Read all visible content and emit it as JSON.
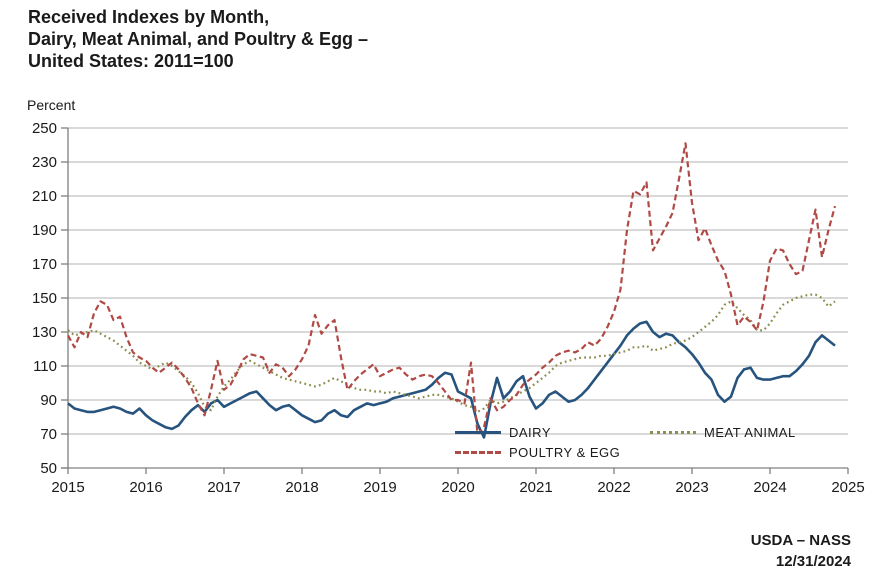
{
  "title": {
    "line1": "Received Indexes by Month,",
    "line2": "Dairy, Meat Animal, and Poultry & Egg –",
    "line3": "United States: 2011=100"
  },
  "y_axis_label": "Percent",
  "footer": {
    "line1": "USDA – NASS",
    "line2": "12/31/2024"
  },
  "chart_data": {
    "type": "line",
    "title": "Received Indexes by Month, Dairy, Meat Animal, and Poultry & Egg – United States: 2011=100",
    "ylabel": "Percent",
    "ylim": [
      50,
      250
    ],
    "y_ticks": [
      50,
      70,
      90,
      110,
      130,
      150,
      170,
      190,
      210,
      230,
      250
    ],
    "x_tick_labels": [
      "2015",
      "2016",
      "2017",
      "2018",
      "2019",
      "2020",
      "2021",
      "2022",
      "2023",
      "2024",
      "2025"
    ],
    "x_start": "2015-01",
    "frequency": "monthly",
    "grid": "horizontal-only",
    "legend_position": "inside-bottom",
    "axis_color": "#808080",
    "gridline_color": "#b3b3b3",
    "series": [
      {
        "name": "DAIRY",
        "color": "#27547e",
        "line_style": "solid",
        "values": [
          88,
          85,
          84,
          83,
          83,
          84,
          85,
          86,
          85,
          83,
          82,
          85,
          81,
          78,
          76,
          74,
          73,
          75,
          80,
          84,
          87,
          83,
          88,
          90,
          86,
          88,
          90,
          92,
          94,
          95,
          91,
          87,
          84,
          86,
          87,
          84,
          81,
          79,
          77,
          78,
          82,
          84,
          81,
          80,
          84,
          86,
          88,
          87,
          88,
          89,
          91,
          92,
          93,
          94,
          95,
          96,
          99,
          103,
          106,
          105,
          95,
          93,
          91,
          76,
          68,
          88,
          103,
          91,
          95,
          101,
          104,
          92,
          85,
          88,
          93,
          95,
          92,
          89,
          90,
          93,
          97,
          102,
          107,
          112,
          117,
          122,
          128,
          132,
          135,
          136,
          130,
          127,
          129,
          128,
          124,
          121,
          117,
          112,
          106,
          102,
          93,
          89,
          92,
          103,
          108,
          109,
          103,
          102,
          102,
          103,
          104,
          104,
          107,
          111,
          116,
          124,
          128,
          125,
          122
        ]
      },
      {
        "name": "MEAT ANIMAL",
        "color": "#8d8d4e",
        "line_style": "dotted",
        "values": [
          131,
          128,
          129,
          130,
          131,
          129,
          127,
          125,
          122,
          119,
          116,
          112,
          110,
          108,
          110,
          112,
          110,
          107,
          104,
          100,
          94,
          86,
          84,
          92,
          98,
          102,
          107,
          111,
          113,
          111,
          109,
          107,
          105,
          103,
          102,
          101,
          100,
          99,
          98,
          99,
          101,
          103,
          101,
          99,
          97,
          96,
          96,
          95,
          95,
          94,
          95,
          94,
          93,
          92,
          91,
          92,
          93,
          93,
          92,
          91,
          89,
          87,
          86,
          83,
          85,
          90,
          88,
          89,
          91,
          93,
          95,
          97,
          100,
          103,
          106,
          110,
          112,
          113,
          114,
          115,
          115,
          115,
          116,
          116,
          117,
          118,
          119,
          121,
          121,
          122,
          119,
          120,
          121,
          123,
          124,
          125,
          127,
          130,
          133,
          136,
          140,
          146,
          148,
          144,
          140,
          137,
          131,
          131,
          135,
          141,
          146,
          148,
          150,
          151,
          152,
          152,
          150,
          145,
          148
        ]
      },
      {
        "name": "POULTRY & EGG",
        "color": "#b04a45",
        "line_style": "dashed",
        "values": [
          128,
          121,
          130,
          127,
          141,
          148,
          146,
          137,
          139,
          127,
          118,
          115,
          113,
          109,
          106,
          109,
          112,
          108,
          103,
          97,
          88,
          81,
          96,
          113,
          96,
          99,
          106,
          114,
          117,
          116,
          115,
          106,
          111,
          109,
          104,
          108,
          114,
          122,
          140,
          129,
          134,
          137,
          115,
          96,
          101,
          105,
          108,
          111,
          104,
          106,
          108,
          109,
          105,
          102,
          104,
          105,
          104,
          100,
          95,
          90,
          90,
          88,
          112,
          70,
          74,
          91,
          84,
          86,
          90,
          93,
          99,
          102,
          105,
          109,
          112,
          116,
          118,
          119,
          118,
          120,
          124,
          122,
          126,
          133,
          142,
          155,
          190,
          213,
          211,
          218,
          178,
          185,
          192,
          200,
          220,
          241,
          206,
          184,
          191,
          181,
          172,
          166,
          152,
          134,
          139,
          136,
          131,
          148,
          172,
          179,
          178,
          170,
          164,
          166,
          184,
          202,
          174,
          190,
          204
        ]
      }
    ]
  }
}
